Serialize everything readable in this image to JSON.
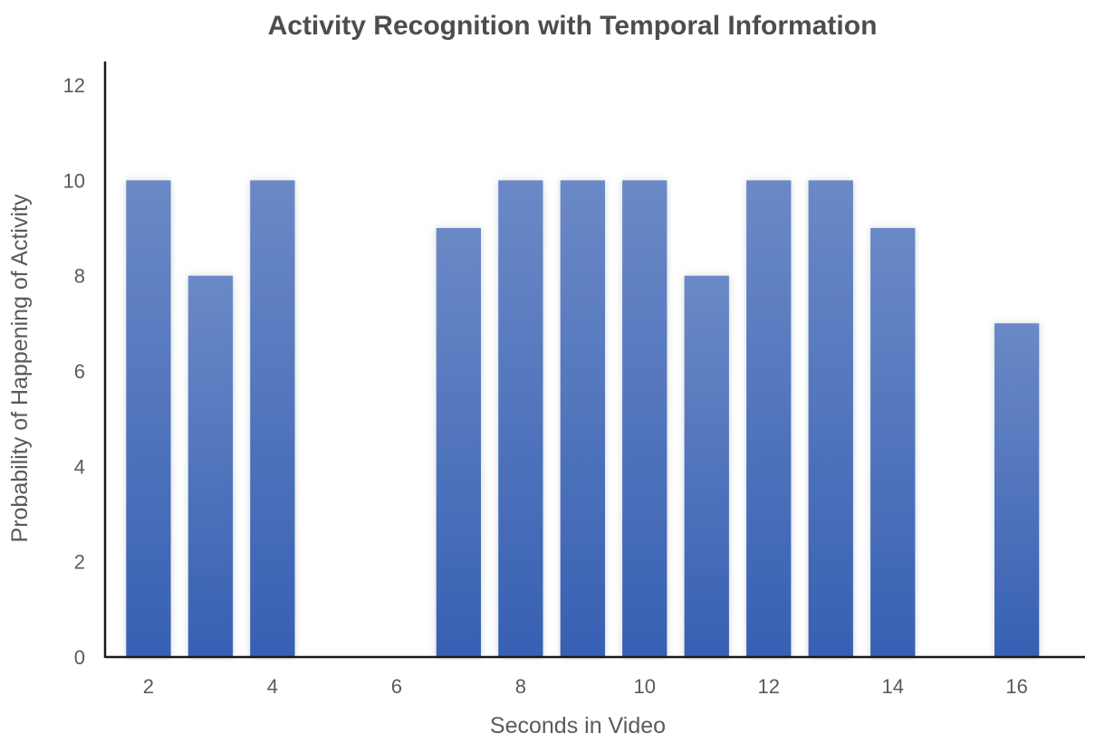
{
  "chart_data": {
    "type": "bar",
    "title": "Activity Recognition with Temporal Information",
    "xlabel": "Seconds in Video",
    "ylabel": "Probability of Happening of Activity",
    "x": [
      2,
      3,
      4,
      5,
      6,
      7,
      8,
      9,
      10,
      11,
      12,
      13,
      14,
      15,
      16
    ],
    "values": [
      10,
      8,
      10,
      0,
      0,
      9,
      10,
      10,
      10,
      8,
      10,
      10,
      9,
      0,
      7
    ],
    "xticks": [
      2,
      4,
      6,
      8,
      10,
      12,
      14,
      16
    ],
    "yticks": [
      0,
      2,
      4,
      6,
      8,
      10,
      12
    ],
    "ylim": [
      0,
      12
    ],
    "xlim": [
      1.3,
      17.1
    ],
    "grid": false,
    "legend": "none",
    "bar_color_top": "#6b89c6",
    "bar_color_bottom": "#3760b3"
  }
}
